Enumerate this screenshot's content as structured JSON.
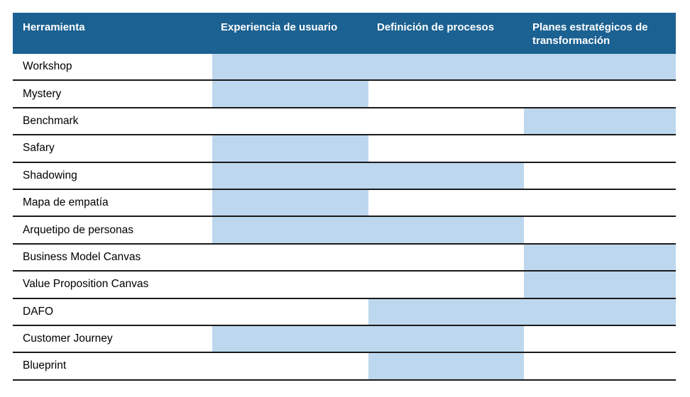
{
  "table": {
    "columns": [
      {
        "label": "Herramienta"
      },
      {
        "label": "Experiencia de usuario"
      },
      {
        "label": "Definición de procesos"
      },
      {
        "label": "Planes estratégicos de transformación"
      }
    ],
    "rows": [
      {
        "tool": "Workshop",
        "experiencia": true,
        "definicion": true,
        "planes": true
      },
      {
        "tool": "Mystery",
        "experiencia": true,
        "definicion": false,
        "planes": false
      },
      {
        "tool": "Benchmark",
        "experiencia": false,
        "definicion": false,
        "planes": true
      },
      {
        "tool": "Safary",
        "experiencia": true,
        "definicion": false,
        "planes": false
      },
      {
        "tool": "Shadowing",
        "experiencia": true,
        "definicion": true,
        "planes": false
      },
      {
        "tool": "Mapa de empatía",
        "experiencia": true,
        "definicion": false,
        "planes": false
      },
      {
        "tool": "Arquetipo de personas",
        "experiencia": true,
        "definicion": true,
        "planes": false
      },
      {
        "tool": "Business Model Canvas",
        "experiencia": false,
        "definicion": false,
        "planes": true
      },
      {
        "tool": "Value Proposition Canvas",
        "experiencia": false,
        "definicion": false,
        "planes": true
      },
      {
        "tool": "DAFO",
        "experiencia": false,
        "definicion": true,
        "planes": true
      },
      {
        "tool": "Customer Journey",
        "experiencia": true,
        "definicion": true,
        "planes": false
      },
      {
        "tool": "Blueprint",
        "experiencia": false,
        "definicion": true,
        "planes": false
      }
    ],
    "colors": {
      "header_bg": "#1B6191",
      "header_text": "#FFFFFF",
      "highlight": "#BDD7EE",
      "row_border": "#1A1A1A",
      "body_text": "#000000",
      "page_bg": "#FFFFFF"
    }
  },
  "chart_data": {
    "type": "table",
    "title": "",
    "columns": [
      "Herramienta",
      "Experiencia de usuario",
      "Definición de procesos",
      "Planes estratégicos de transformación"
    ],
    "rows": [
      [
        "Workshop",
        true,
        true,
        true
      ],
      [
        "Mystery",
        true,
        false,
        false
      ],
      [
        "Benchmark",
        false,
        false,
        true
      ],
      [
        "Safary",
        true,
        false,
        false
      ],
      [
        "Shadowing",
        true,
        true,
        false
      ],
      [
        "Mapa de empatía",
        true,
        false,
        false
      ],
      [
        "Arquetipo de personas",
        true,
        true,
        false
      ],
      [
        "Business Model Canvas",
        false,
        false,
        true
      ],
      [
        "Value Proposition Canvas",
        false,
        false,
        true
      ],
      [
        "DAFO",
        false,
        true,
        true
      ],
      [
        "Customer Journey",
        true,
        true,
        false
      ],
      [
        "Blueprint",
        false,
        true,
        false
      ]
    ],
    "cell_encoding": "true = light-blue highlighted cell meaning the tool applies to that category",
    "highlight_color": "#BDD7EE",
    "header_color": "#1B6191"
  }
}
